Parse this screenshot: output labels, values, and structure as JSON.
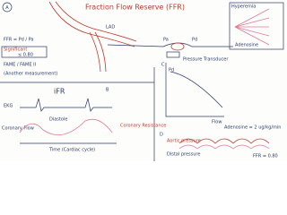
{
  "header": {
    "title": "Fraction Flow Reserve (FFR)"
  },
  "panel_a": {
    "label": "A",
    "formula": "FFR = Pd / Pa",
    "significant": "Significant",
    "threshold": "≤ 0.80",
    "trials": "FAME / FAME II",
    "note": "(Another measurement)",
    "vessel": "LAD",
    "pa": "Pa",
    "pd": "Pd",
    "transducer": "Pressure Transducer",
    "hyperemia": "Hyperemia",
    "adenosine": "Adenosine"
  },
  "panel_b": {
    "label": "B",
    "title": "iFR",
    "ekg": "EKG",
    "flow": "Coronary Flow",
    "diastole": "Diastole",
    "time": "Time (Cardiac cycle)",
    "resistance": "Coronary Resistance"
  },
  "panel_c": {
    "label": "C",
    "y_axis": "Pd",
    "x_axis": "Flow"
  },
  "panel_d": {
    "label": "D",
    "adenosine": "Adenosine = 2 ug/kg/min",
    "aortic": "Aortic pressure",
    "distal": "Distal pressure",
    "ffr": "FFR = 0.80"
  }
}
